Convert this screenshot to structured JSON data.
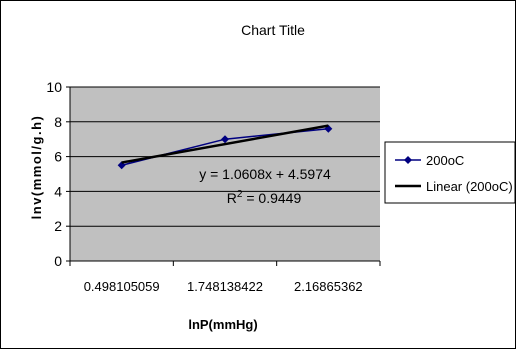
{
  "chart_data": {
    "type": "line",
    "title": "Chart Title",
    "xlabel": "lnP(mmHg)",
    "ylabel": "lnv(mmol/g.h)",
    "categories": [
      "0.498105059",
      "1.748138422",
      "2.16865362"
    ],
    "series": [
      {
        "name": "200oC",
        "values": [
          5.5,
          7.0,
          7.6
        ],
        "color": "#000080",
        "marker": "diamond"
      }
    ],
    "trendline": {
      "name": "Linear (200oC)",
      "type": "linear",
      "slope": 1.0608,
      "intercept": 4.5974,
      "r_squared": 0.9449,
      "equation_text": "y = 1.0608x + 4.5974",
      "r2_label": "R",
      "r2_exponent": "2",
      "r2_value_text": " = 0.9449",
      "color": "#000000"
    },
    "ylim": [
      0,
      10
    ],
    "yticks": [
      "0",
      "2",
      "4",
      "6",
      "8",
      "10"
    ],
    "grid": true,
    "plot_background": "#c0c0c0",
    "legend": {
      "position": "right",
      "entries": [
        "200oC",
        "Linear (200oC)"
      ]
    }
  }
}
